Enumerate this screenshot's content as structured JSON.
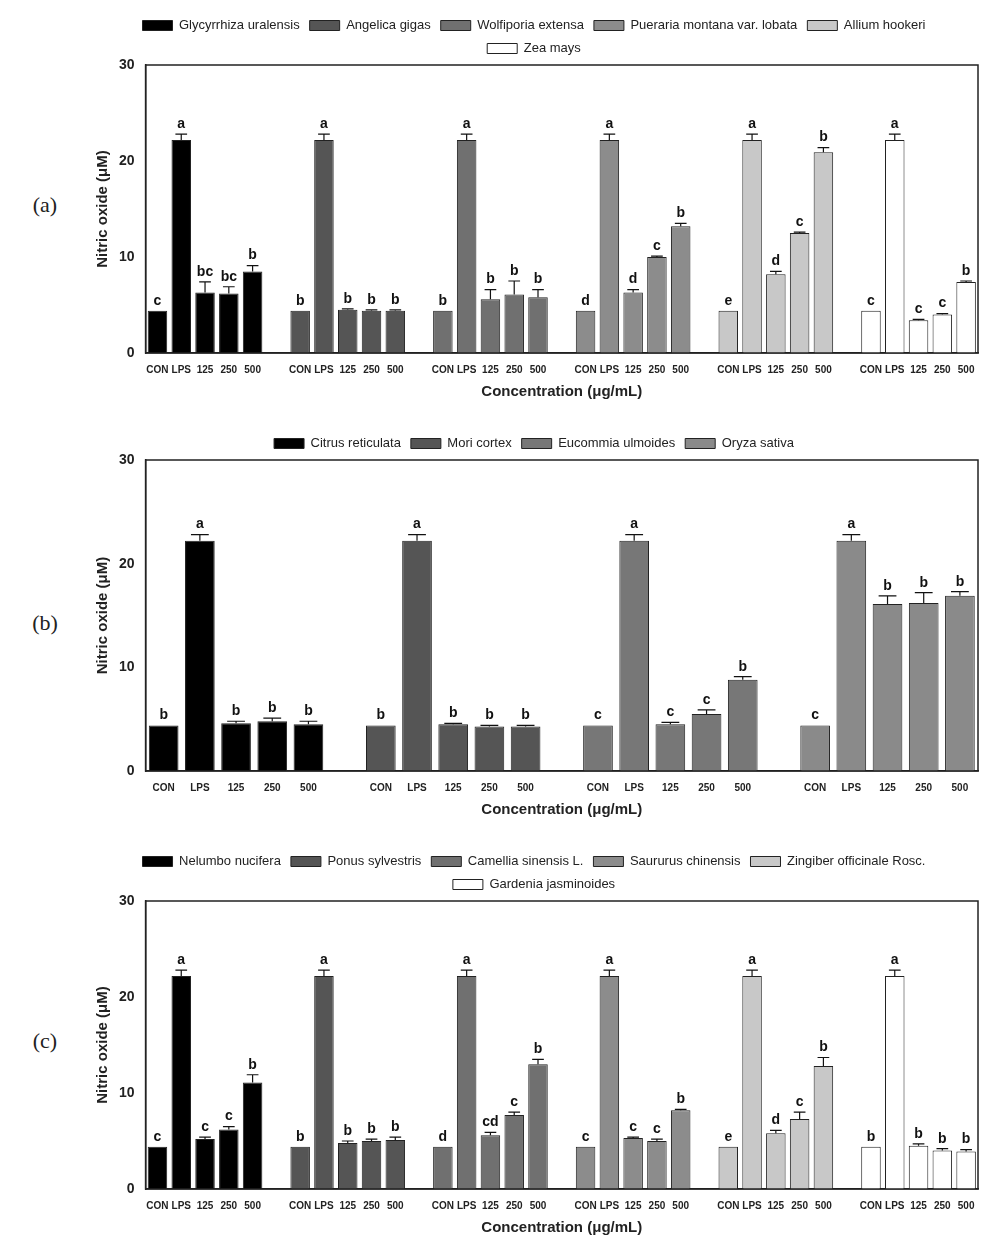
{
  "chart_data": [
    {
      "type": "bar",
      "title": "(a)",
      "x_label": "Concentration (μg/mL)",
      "y_label": "Nitric oxide (μM)",
      "categories": [
        "CON",
        "LPS",
        "125",
        "250",
        "500"
      ],
      "ylim": [
        0,
        30
      ],
      "yticks": [
        0,
        10,
        20,
        30
      ],
      "grid": false,
      "legend": "top",
      "series": [
        {
          "name": "Glycyrrhiza uralensis",
          "color": "#000000",
          "values": [
            4.4,
            22.2,
            6.3,
            6.2,
            8.5
          ],
          "errors": [
            0,
            0.6,
            1.1,
            0.7,
            0.6
          ],
          "letters": [
            "c",
            "a",
            "bc",
            "bc",
            "b"
          ]
        },
        {
          "name": "Angelica gigas",
          "color": "#555555",
          "values": [
            4.4,
            22.2,
            4.5,
            4.4,
            4.4
          ],
          "errors": [
            0,
            0.6,
            0.1,
            0.1,
            0.1
          ],
          "letters": [
            "b",
            "a",
            "b",
            "b",
            "b"
          ]
        },
        {
          "name": "Wolfiporia extensa",
          "color": "#707070",
          "values": [
            4.4,
            22.2,
            5.6,
            6.1,
            5.8
          ],
          "errors": [
            0,
            0.6,
            1.0,
            1.4,
            0.8
          ],
          "letters": [
            "b",
            "a",
            "b",
            "b",
            "b"
          ]
        },
        {
          "name": "Pueraria montana var. lobata",
          "color": "#8c8c8c",
          "values": [
            4.4,
            22.2,
            6.3,
            10.0,
            13.2
          ],
          "errors": [
            0,
            0.6,
            0.3,
            0.1,
            0.3
          ],
          "letters": [
            "d",
            "a",
            "d",
            "c",
            "b"
          ]
        },
        {
          "name": "Allium hookeri",
          "color": "#c8c8c8",
          "values": [
            4.4,
            22.2,
            8.2,
            12.5,
            20.9
          ],
          "errors": [
            0,
            0.6,
            0.3,
            0.1,
            0.5
          ],
          "letters": [
            "e",
            "a",
            "d",
            "c",
            "b"
          ]
        },
        {
          "name": "Zea mays",
          "color": "#ffffff",
          "values": [
            4.4,
            22.2,
            3.4,
            4.0,
            7.4
          ],
          "errors": [
            0,
            0.6,
            0.1,
            0.1,
            0.1
          ],
          "letters": [
            "c",
            "a",
            "c",
            "c",
            "b"
          ]
        }
      ]
    },
    {
      "type": "bar",
      "title": "(b)",
      "x_label": "Concentration (μg/mL)",
      "y_label": "Nitric oxide (μM)",
      "categories": [
        "CON",
        "LPS",
        "125",
        "250",
        "500"
      ],
      "ylim": [
        0,
        30
      ],
      "yticks": [
        0,
        10,
        20,
        30
      ],
      "grid": false,
      "legend": "top",
      "series": [
        {
          "name": "Citrus reticulata",
          "color": "#000000",
          "values": [
            4.4,
            22.2,
            4.6,
            4.8,
            4.5
          ],
          "errors": [
            0,
            0.6,
            0.2,
            0.3,
            0.3
          ],
          "letters": [
            "b",
            "a",
            "b",
            "b",
            "b"
          ]
        },
        {
          "name": "Mori cortex",
          "color": "#555555",
          "values": [
            4.4,
            22.2,
            4.5,
            4.3,
            4.3
          ],
          "errors": [
            0,
            0.6,
            0.1,
            0.1,
            0.1
          ],
          "letters": [
            "b",
            "a",
            "b",
            "b",
            "b"
          ]
        },
        {
          "name": "Eucommia ulmoides",
          "color": "#777777",
          "values": [
            4.4,
            22.2,
            4.5,
            5.5,
            8.8
          ],
          "errors": [
            0,
            0.6,
            0.2,
            0.4,
            0.3
          ],
          "letters": [
            "c",
            "a",
            "c",
            "c",
            "b"
          ]
        },
        {
          "name": "Oryza sativa",
          "color": "#8a8a8a",
          "values": [
            4.4,
            22.2,
            16.1,
            16.2,
            16.9
          ],
          "errors": [
            0,
            0.6,
            0.8,
            1.0,
            0.4
          ],
          "letters": [
            "c",
            "a",
            "b",
            "b",
            "b"
          ]
        }
      ]
    },
    {
      "type": "bar",
      "title": "(c)",
      "x_label": "Concentration (μg/mL)",
      "y_label": "Nitric oxide (μM)",
      "categories": [
        "CON",
        "LPS",
        "125",
        "250",
        "500"
      ],
      "ylim": [
        0,
        30
      ],
      "yticks": [
        0,
        10,
        20,
        30
      ],
      "grid": false,
      "legend": "top",
      "series": [
        {
          "name": "Nelumbo nucifera",
          "color": "#000000",
          "values": [
            4.4,
            22.2,
            5.2,
            6.2,
            11.1
          ],
          "errors": [
            0,
            0.6,
            0.2,
            0.3,
            0.8
          ],
          "letters": [
            "c",
            "a",
            "c",
            "c",
            "b"
          ]
        },
        {
          "name": "Ponus sylvestris",
          "color": "#555555",
          "values": [
            4.4,
            22.2,
            4.8,
            5.0,
            5.1
          ],
          "errors": [
            0,
            0.6,
            0.2,
            0.2,
            0.3
          ],
          "letters": [
            "b",
            "a",
            "b",
            "b",
            "b"
          ]
        },
        {
          "name": "Camellia sinensis L.",
          "color": "#707070",
          "values": [
            4.4,
            22.2,
            5.6,
            7.7,
            13.0
          ],
          "errors": [
            0,
            0.6,
            0.3,
            0.3,
            0.5
          ],
          "letters": [
            "d",
            "a",
            "cd",
            "c",
            "b"
          ]
        },
        {
          "name": "Saururus chinensis",
          "color": "#8c8c8c",
          "values": [
            4.4,
            22.2,
            5.3,
            5.0,
            8.2
          ],
          "errors": [
            0,
            0.6,
            0.1,
            0.2,
            0.1
          ],
          "letters": [
            "c",
            "a",
            "c",
            "c",
            "b"
          ]
        },
        {
          "name": "Zingiber officinale Rosc.",
          "color": "#c8c8c8",
          "values": [
            4.4,
            22.2,
            5.8,
            7.3,
            12.8
          ],
          "errors": [
            0,
            0.6,
            0.3,
            0.7,
            0.9
          ],
          "letters": [
            "e",
            "a",
            "d",
            "c",
            "b"
          ]
        },
        {
          "name": "Gardenia jasminoides",
          "color": "#ffffff",
          "values": [
            4.4,
            22.2,
            4.5,
            4.0,
            3.9
          ],
          "errors": [
            0,
            0.6,
            0.2,
            0.2,
            0.2
          ],
          "letters": [
            "b",
            "a",
            "b",
            "b",
            "b"
          ]
        }
      ]
    }
  ]
}
